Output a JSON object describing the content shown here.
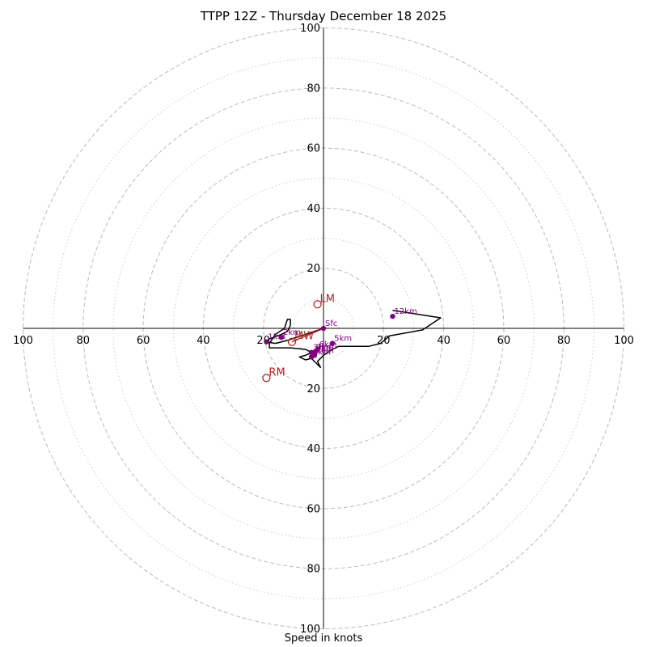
{
  "chart_data": {
    "type": "hodograph",
    "title": "TTPP 12Z - Thursday December 18 2025",
    "xlabel": "Speed in knots",
    "ylabel": "",
    "rlim": [
      0,
      100
    ],
    "major_rings": [
      20,
      40,
      60,
      80,
      100
    ],
    "minor_rings": [
      10,
      30,
      50,
      70,
      90
    ],
    "tick_labels": {
      "right": [
        "20",
        "40",
        "60",
        "80",
        "100"
      ],
      "left": [
        "20",
        "40",
        "60",
        "80",
        "100"
      ],
      "up": [
        "20",
        "40",
        "60",
        "80",
        "100"
      ],
      "down": [
        "20",
        "40",
        "60",
        "80",
        "100"
      ]
    },
    "grid": true,
    "trace": [
      [
        0,
        0
      ],
      [
        -3,
        -1
      ],
      [
        -6,
        -2
      ],
      [
        -9,
        -3
      ],
      [
        -12,
        -4
      ],
      [
        -16,
        -5
      ],
      [
        -19,
        -4.5
      ],
      [
        -18,
        -3.5
      ],
      [
        -14,
        -2
      ],
      [
        -12,
        -1
      ],
      [
        -11,
        1
      ],
      [
        -11,
        3
      ],
      [
        -12,
        3
      ],
      [
        -13,
        0
      ],
      [
        -16,
        -2
      ],
      [
        -18,
        -5
      ],
      [
        -18,
        -6.5
      ],
      [
        -11,
        -6.5
      ],
      [
        -6,
        -7
      ],
      [
        -4,
        -8
      ],
      [
        -6,
        -9
      ],
      [
        -8,
        -9.5
      ],
      [
        -6,
        -10.5
      ],
      [
        -4,
        -10
      ],
      [
        -2,
        -12
      ],
      [
        -1,
        -13
      ],
      [
        -2,
        -11
      ],
      [
        0,
        -9
      ],
      [
        3,
        -7
      ],
      [
        5,
        -6
      ],
      [
        7,
        -6
      ],
      [
        10,
        -6
      ],
      [
        15,
        -6
      ],
      [
        19,
        -5
      ],
      [
        22,
        -2.5
      ],
      [
        33,
        -0.5
      ],
      [
        39,
        3.5
      ],
      [
        23,
        6
      ]
    ],
    "height_markers": [
      {
        "label": "Sfc",
        "u": 0,
        "v": 0
      },
      {
        "label": "1km",
        "u": -19,
        "v": -4.5
      },
      {
        "label": "2km",
        "u": -14,
        "v": -3
      },
      {
        "label": "3km",
        "u": -4,
        "v": -8
      },
      {
        "label": "4km",
        "u": -3,
        "v": -8.5
      },
      {
        "label": "5km",
        "u": 3,
        "v": -5
      },
      {
        "label": "6km",
        "u": -2,
        "v": -7
      },
      {
        "label": "7km",
        "u": -3,
        "v": -9
      },
      {
        "label": "8km",
        "u": -4,
        "v": -9.5
      },
      {
        "label": "9km",
        "u": -3,
        "v": -8
      },
      {
        "label": "12km",
        "u": 23,
        "v": 4
      }
    ],
    "motion_markers": [
      {
        "label": "LM",
        "u": -2,
        "v": 8
      },
      {
        "label": "RM",
        "u": -19,
        "v": -16.5
      },
      {
        "label": "MW",
        "u": -10.5,
        "v": -4.5
      }
    ],
    "colors": {
      "trace": "#000000",
      "height_markers": "#800080",
      "motion_markers": "#b22222",
      "grid": "#bbbbbb"
    }
  }
}
